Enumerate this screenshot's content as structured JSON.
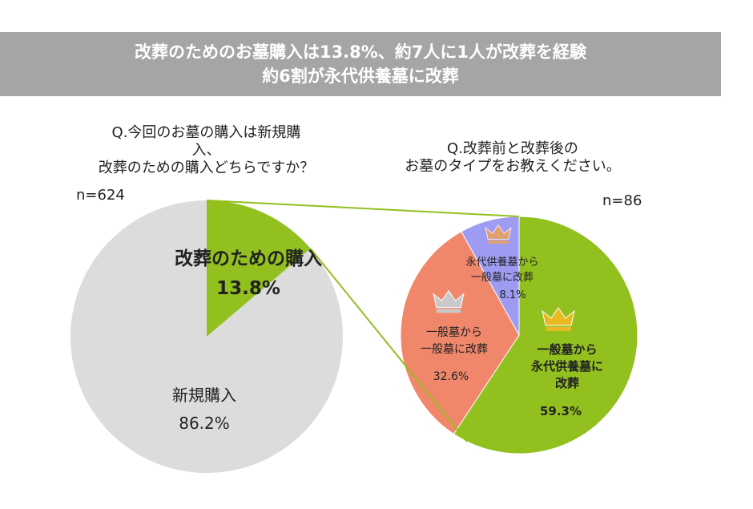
{
  "banner": {
    "line1": "改葬のためのお墓購入は13.8%、約7人に1人が改葬を経験",
    "line2": "約6割が永代供養墓に改葬"
  },
  "left_question": {
    "line1": "Q.今回のお墓の購入は新規購",
    "line2": "入、",
    "line3": "改葬のための購入どちらですか？",
    "n": "n=624"
  },
  "right_question": {
    "line1": "Q.改葬前と改葬後の",
    "line2": "お墓のタイプをお教えください。",
    "n": "n=86"
  },
  "colors": {
    "green": "#92c01f",
    "gray": "#dcdcdc",
    "salmon": "#f0876a",
    "lavender": "#9d9bf2",
    "connector": "#92c01f",
    "gold": "#e8b923",
    "silver": "#c9c9c9",
    "bronze": "#e0a070"
  },
  "chart_data": [
    {
      "type": "pie",
      "slices": [
        {
          "label": "改葬のための購入",
          "value": 13.8,
          "display": "13.8%",
          "color": "#92c01f"
        },
        {
          "label": "新規購入",
          "value": 86.2,
          "display": "86.2%",
          "color": "#dcdcdc"
        }
      ]
    },
    {
      "type": "pie",
      "slices": [
        {
          "label": "一般墓から 永代供養墓に 改葬",
          "label_lines": [
            "一般墓から",
            "永代供養墓に",
            "改葬"
          ],
          "value": 59.3,
          "display": "59.3%",
          "color": "#92c01f",
          "icon": "gold-crown-icon"
        },
        {
          "label": "一般墓から 一般墓に改葬",
          "label_lines": [
            "一般墓から",
            "一般墓に改葬"
          ],
          "value": 32.6,
          "display": "32.6%",
          "color": "#f0876a",
          "icon": "silver-crown-icon"
        },
        {
          "label": "永代供養墓から 一般墓に改葬",
          "label_lines": [
            "永代供養墓から",
            "一般墓に改葬"
          ],
          "value": 8.1,
          "display": "8.1%",
          "color": "#9d9bf2",
          "icon": "bronze-crown-icon"
        }
      ]
    }
  ]
}
